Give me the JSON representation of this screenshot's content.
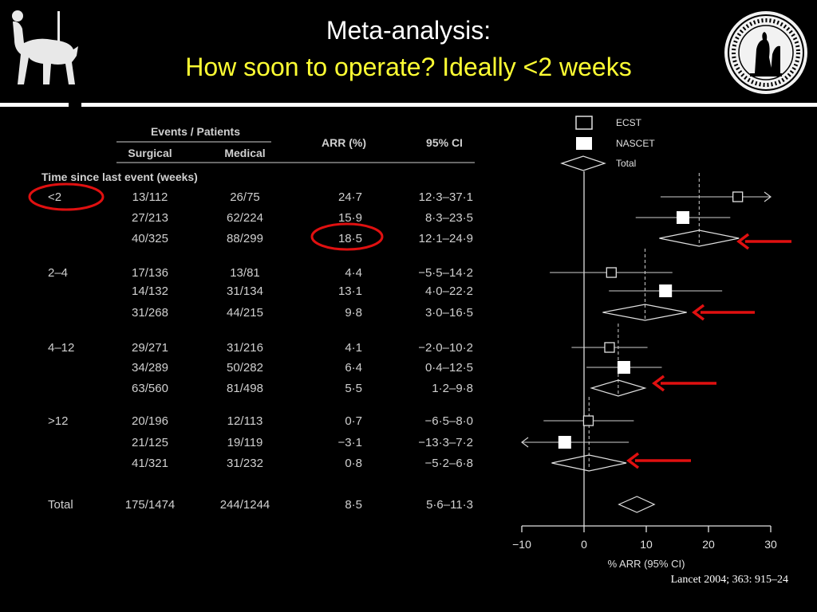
{
  "slide": {
    "title": "Meta-analysis:",
    "subtitle": "How soon to operate? Ideally <2 weeks",
    "citation": "Lancet 2004; 363: 915–24"
  },
  "table": {
    "header_group": "Events / Patients",
    "col_surgical": "Surgical",
    "col_medical": "Medical",
    "col_arr": "ARR (%)",
    "col_ci": "95% CI",
    "section_label": "Time since last event (weeks)",
    "rows": [
      {
        "group": "<2",
        "surgical": "13/112",
        "medical": "26/75",
        "arr": "24·7",
        "ci": "12·3–37·1"
      },
      {
        "group": "",
        "surgical": "27/213",
        "medical": "62/224",
        "arr": "15·9",
        "ci": "8·3–23·5"
      },
      {
        "group": "",
        "surgical": "40/325",
        "medical": "88/299",
        "arr": "18·5",
        "ci": "12·1–24·9"
      },
      {
        "group": "2–4",
        "surgical": "17/136",
        "medical": "13/81",
        "arr": "4·4",
        "ci": "−5·5–14·2"
      },
      {
        "group": "",
        "surgical": "14/132",
        "medical": "31/134",
        "arr": "13·1",
        "ci": "4·0–22·2"
      },
      {
        "group": "",
        "surgical": "31/268",
        "medical": "44/215",
        "arr": "9·8",
        "ci": "3·0–16·5"
      },
      {
        "group": "4–12",
        "surgical": "29/271",
        "medical": "31/216",
        "arr": "4·1",
        "ci": "−2·0–10·2"
      },
      {
        "group": "",
        "surgical": "34/289",
        "medical": "50/282",
        "arr": "6·4",
        "ci": "0·4–12·5"
      },
      {
        "group": "",
        "surgical": "63/560",
        "medical": "81/498",
        "arr": "5·5",
        "ci": "1·2–9·8"
      },
      {
        "group": ">12",
        "surgical": "20/196",
        "medical": "12/113",
        "arr": "0·7",
        "ci": "−6·5–8·0"
      },
      {
        "group": "",
        "surgical": "21/125",
        "medical": "19/119",
        "arr": "−3·1",
        "ci": "−13·3–7·2"
      },
      {
        "group": "",
        "surgical": "41/321",
        "medical": "31/232",
        "arr": "0·8",
        "ci": "−5·2–6·8"
      },
      {
        "group": "Total",
        "surgical": "175/1474",
        "medical": "244/1244",
        "arr": "8·5",
        "ci": "5·6–11·3"
      }
    ]
  },
  "chart_data": {
    "type": "forest",
    "xlabel": "% ARR (95% CI)",
    "xlim": [
      -10,
      30
    ],
    "xticks": [
      -10,
      0,
      10,
      20,
      30
    ],
    "legend": [
      "ECST",
      "NASCET",
      "Total"
    ],
    "legend_placement": "top",
    "rows": [
      {
        "study": "ECST",
        "group": "<2",
        "arr": 24.7,
        "lo": 12.3,
        "hi": 37.1
      },
      {
        "study": "NASCET",
        "group": "<2",
        "arr": 15.9,
        "lo": 8.3,
        "hi": 23.5
      },
      {
        "study": "Total",
        "group": "<2",
        "arr": 18.5,
        "lo": 12.1,
        "hi": 24.9
      },
      {
        "study": "ECST",
        "group": "2–4",
        "arr": 4.4,
        "lo": -5.5,
        "hi": 14.2
      },
      {
        "study": "NASCET",
        "group": "2–4",
        "arr": 13.1,
        "lo": 4.0,
        "hi": 22.2
      },
      {
        "study": "Total",
        "group": "2–4",
        "arr": 9.8,
        "lo": 3.0,
        "hi": 16.5
      },
      {
        "study": "ECST",
        "group": "4–12",
        "arr": 4.1,
        "lo": -2.0,
        "hi": 10.2
      },
      {
        "study": "NASCET",
        "group": "4–12",
        "arr": 6.4,
        "lo": 0.4,
        "hi": 12.5
      },
      {
        "study": "Total",
        "group": "4–12",
        "arr": 5.5,
        "lo": 1.2,
        "hi": 9.8
      },
      {
        "study": "ECST",
        "group": ">12",
        "arr": 0.7,
        "lo": -6.5,
        "hi": 8.0
      },
      {
        "study": "NASCET",
        "group": ">12",
        "arr": -3.1,
        "lo": -13.3,
        "hi": 7.2
      },
      {
        "study": "Total",
        "group": ">12",
        "arr": 0.8,
        "lo": -5.2,
        "hi": 6.8
      },
      {
        "study": "Total",
        "group": "Total",
        "arr": 8.5,
        "lo": 5.6,
        "hi": 11.3
      }
    ],
    "highlighted_rows": [
      "<2",
      "18·5"
    ],
    "annotation_color": "#e01010",
    "subtitle_color": "#ffff33"
  }
}
